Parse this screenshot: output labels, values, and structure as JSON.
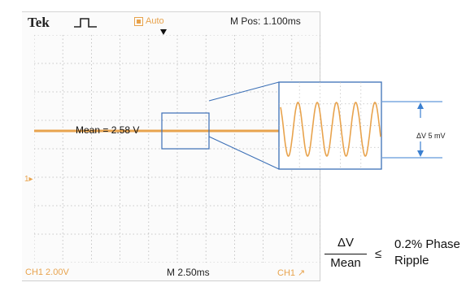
{
  "scope": {
    "brand": "Tek",
    "trigger_mode": "Auto",
    "horizontal_position": "M Pos: 1.100ms",
    "channel_scale": "CH1  2.00V",
    "time_base": "M 2.50ms",
    "trigger_source": "CH1 ↗",
    "channel_marker": "1▸",
    "mean_label": "Mean = 2.58 V"
  },
  "zoom": {
    "ripple_label": "ΔV 5 mV"
  },
  "formula": {
    "numerator": "ΔV",
    "denominator": "Mean",
    "relation": "≤",
    "limit": "0.2% Phase\nRipple"
  },
  "colors": {
    "trace": "#e8a34d",
    "zoom_box": "#3b6fb6",
    "arrow": "#3a7fd0",
    "grid": "#b8b8b8"
  }
}
